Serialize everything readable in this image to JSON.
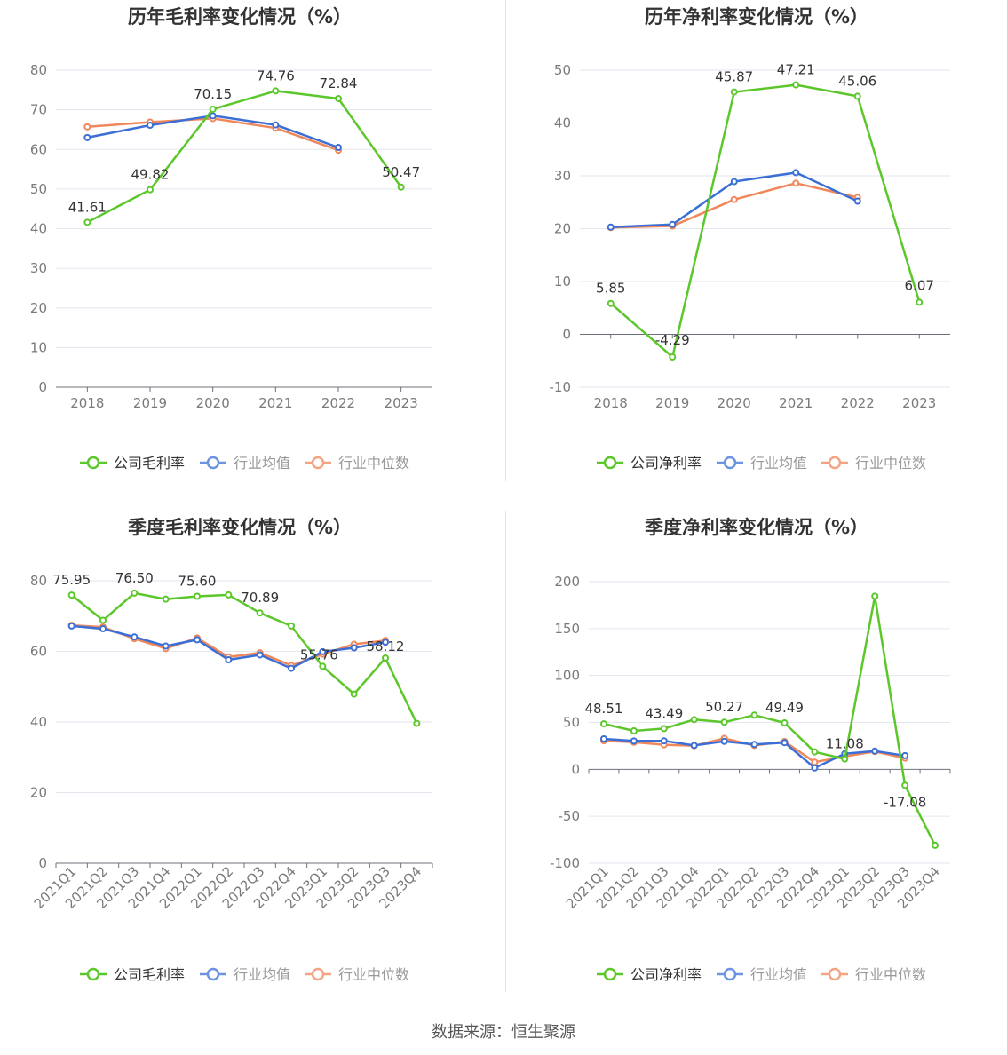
{
  "source_text": "数据来源：恒生聚源",
  "colors": {
    "company": "#5cc72b",
    "avg": "#3b6fd6",
    "median": "#f0875a"
  },
  "chart_data": [
    {
      "type": "line",
      "title": "历年毛利率变化情况（%）",
      "categories": [
        "2018",
        "2019",
        "2020",
        "2021",
        "2022",
        "2023"
      ],
      "ylim": [
        0,
        80
      ],
      "yticks": [
        0,
        10,
        20,
        30,
        40,
        50,
        60,
        70,
        80
      ],
      "grid": true,
      "legend_position": "bottom",
      "series": [
        {
          "name": "公司毛利率",
          "key": "company",
          "values": [
            41.61,
            49.82,
            70.15,
            74.76,
            72.84,
            50.47
          ]
        },
        {
          "name": "行业均值",
          "key": "avg",
          "values": [
            63.0,
            66.1,
            68.5,
            66.2,
            60.5,
            null
          ]
        },
        {
          "name": "行业中位数",
          "key": "median",
          "values": [
            65.7,
            66.9,
            67.8,
            65.4,
            59.8,
            null
          ]
        }
      ],
      "data_labels": [
        {
          "index": 0,
          "text": "41.61"
        },
        {
          "index": 1,
          "text": "49.82"
        },
        {
          "index": 2,
          "text": "70.15"
        },
        {
          "index": 3,
          "text": "74.76"
        },
        {
          "index": 4,
          "text": "72.84"
        },
        {
          "index": 5,
          "text": "50.47"
        }
      ]
    },
    {
      "type": "line",
      "title": "历年净利率变化情况（%）",
      "categories": [
        "2018",
        "2019",
        "2020",
        "2021",
        "2022",
        "2023"
      ],
      "ylim": [
        -10,
        50
      ],
      "yticks": [
        -10,
        0,
        10,
        20,
        30,
        40,
        50
      ],
      "grid": true,
      "legend_position": "bottom",
      "series": [
        {
          "name": "公司净利率",
          "key": "company",
          "values": [
            5.85,
            -4.29,
            45.87,
            47.21,
            45.06,
            6.07
          ]
        },
        {
          "name": "行业均值",
          "key": "avg",
          "values": [
            20.3,
            20.8,
            28.9,
            30.6,
            25.2,
            null
          ]
        },
        {
          "name": "行业中位数",
          "key": "median",
          "values": [
            20.2,
            20.5,
            25.5,
            28.6,
            25.9,
            null
          ]
        }
      ],
      "data_labels": [
        {
          "index": 0,
          "text": "5.85"
        },
        {
          "index": 1,
          "text": "-4.29"
        },
        {
          "index": 2,
          "text": "45.87"
        },
        {
          "index": 3,
          "text": "47.21"
        },
        {
          "index": 4,
          "text": "45.06"
        },
        {
          "index": 5,
          "text": "6.07"
        }
      ]
    },
    {
      "type": "line",
      "title": "季度毛利率变化情况（%）",
      "categories": [
        "2021Q1",
        "2021Q2",
        "2021Q3",
        "2021Q4",
        "2022Q1",
        "2022Q2",
        "2022Q3",
        "2022Q4",
        "2023Q1",
        "2023Q2",
        "2023Q3",
        "2023Q4"
      ],
      "ylim": [
        0,
        80
      ],
      "yticks": [
        0,
        20,
        40,
        60,
        80
      ],
      "grid": true,
      "legend_position": "bottom",
      "series": [
        {
          "name": "公司毛利率",
          "key": "company",
          "values": [
            75.95,
            68.8,
            76.5,
            74.8,
            75.6,
            76.0,
            70.89,
            67.2,
            55.76,
            47.9,
            58.12,
            39.6
          ]
        },
        {
          "name": "行业均值",
          "key": "avg",
          "values": [
            67.2,
            66.4,
            64.1,
            61.5,
            63.3,
            57.6,
            59.0,
            55.2,
            59.9,
            61.0,
            62.6,
            null
          ]
        },
        {
          "name": "行业中位数",
          "key": "median",
          "values": [
            67.4,
            66.9,
            63.6,
            60.8,
            63.8,
            58.4,
            59.6,
            56.0,
            59.2,
            62.0,
            63.1,
            null
          ]
        }
      ],
      "data_labels": [
        {
          "index": 0,
          "text": "75.95"
        },
        {
          "index": 2,
          "text": "76.50"
        },
        {
          "index": 4,
          "text": "75.60"
        },
        {
          "index": 6,
          "text": "70.89"
        },
        {
          "index": 8,
          "text": "55.76"
        },
        {
          "index": 10,
          "text": "58.12"
        }
      ]
    },
    {
      "type": "line",
      "title": "季度净利率变化情况（%）",
      "categories": [
        "2021Q1",
        "2021Q2",
        "2021Q3",
        "2021Q4",
        "2022Q1",
        "2022Q2",
        "2022Q3",
        "2022Q4",
        "2023Q1",
        "2023Q2",
        "2023Q3",
        "2023Q4"
      ],
      "ylim": [
        -100,
        200
      ],
      "yticks": [
        -100,
        -50,
        0,
        50,
        100,
        150,
        200
      ],
      "grid": true,
      "legend_position": "bottom",
      "series": [
        {
          "name": "公司净利率",
          "key": "company",
          "values": [
            48.51,
            41.0,
            43.49,
            53.0,
            50.27,
            57.8,
            49.49,
            18.6,
            11.08,
            184.5,
            -17.08,
            -81.0
          ]
        },
        {
          "name": "行业均值",
          "key": "avg",
          "values": [
            32.5,
            30.3,
            30.4,
            25.5,
            29.9,
            26.6,
            28.5,
            1.5,
            16.6,
            19.5,
            14.6,
            null
          ]
        },
        {
          "name": "行业中位数",
          "key": "median",
          "values": [
            30.5,
            28.9,
            26.2,
            25.2,
            33.0,
            25.5,
            29.7,
            7.7,
            13.8,
            19.0,
            12.0,
            null
          ]
        }
      ],
      "data_labels": [
        {
          "index": 0,
          "text": "48.51"
        },
        {
          "index": 2,
          "text": "43.49"
        },
        {
          "index": 4,
          "text": "50.27"
        },
        {
          "index": 6,
          "text": "49.49"
        },
        {
          "index": 8,
          "text": "11.08"
        },
        {
          "index": 10,
          "text": "-17.08"
        }
      ]
    }
  ]
}
